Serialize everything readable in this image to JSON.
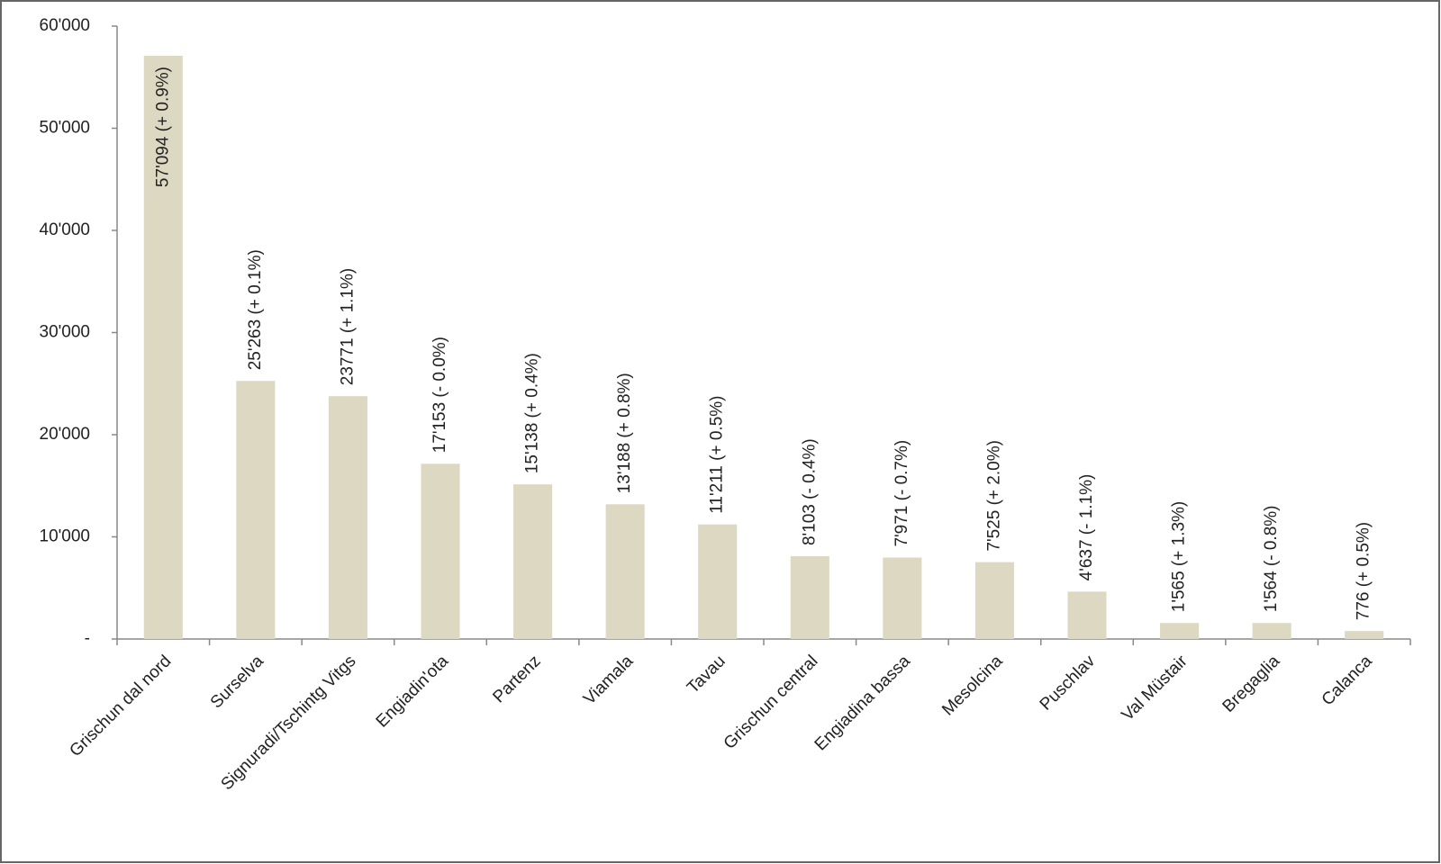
{
  "chart_data": {
    "type": "bar",
    "categories": [
      "Grischun dal nord",
      "Surselva",
      "Signuradi/Tschintg Vitgs",
      "Engiadin'ota",
      "Partenz",
      "Viamala",
      "Tavau",
      "Grischun central",
      "Engiadina bassa",
      "Mesolcina",
      "Puschlav",
      "Val Müstair",
      "Bregaglia",
      "Calanca"
    ],
    "values": [
      57094,
      25263,
      23771,
      17153,
      15138,
      13188,
      11211,
      8103,
      7971,
      7525,
      4637,
      1565,
      1564,
      776
    ],
    "value_labels": [
      "57'094  (+ 0.9%)",
      "25'263  (+ 0.1%)",
      "23771  (+ 1.1%)",
      "17'153  (- 0.0%)",
      "15'138  (+ 0.4%)",
      "13'188  (+ 0.8%)",
      "11'211  (+ 0.5%)",
      "8'103  (- 0.4%)",
      "7'971  (- 0.7%)",
      "7'525  (+ 2.0%)",
      "4'637  (- 1.1%)",
      "1'565  (+ 1.3%)",
      "1'564  (- 0.8%)",
      "776  (+ 0.5%)"
    ],
    "color": "#ddd8c2",
    "ylim": [
      0,
      60000
    ],
    "yticks": [
      {
        "value": 0,
        "label": "-"
      },
      {
        "value": 10000,
        "label": "10'000"
      },
      {
        "value": 20000,
        "label": "20'000"
      },
      {
        "value": 30000,
        "label": "30'000"
      },
      {
        "value": 40000,
        "label": "40'000"
      },
      {
        "value": 50000,
        "label": "50'000"
      },
      {
        "value": 60000,
        "label": "60'000"
      }
    ],
    "grid": false
  }
}
